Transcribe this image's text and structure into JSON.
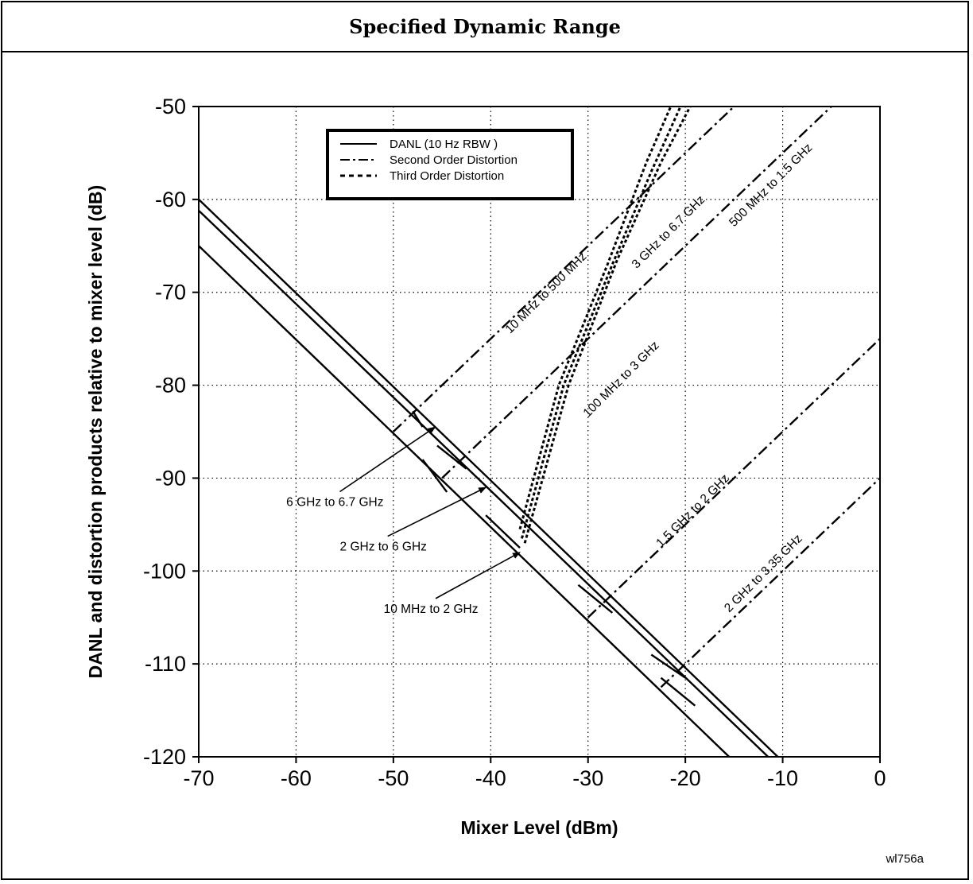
{
  "page": {
    "title": "Specified Dynamic Range",
    "figure_id": "wl756a"
  },
  "chart_data": {
    "type": "line",
    "xlabel": "Mixer Level (dBm)",
    "ylabel": "DANL and distortion products relative to mixer level (dB)",
    "xlim": [
      -70,
      0
    ],
    "ylim": [
      -120,
      -50
    ],
    "x_ticks": [
      "-70",
      "-60",
      "-50",
      "-40",
      "-30",
      "-20",
      "-10",
      "0"
    ],
    "y_ticks": [
      "-50",
      "-60",
      "-70",
      "-80",
      "-90",
      "-100",
      "-110",
      "-120"
    ],
    "grid": true,
    "legend_position": "top-left",
    "legend": [
      {
        "label": "DANL (10 Hz RBW )",
        "style": "solid"
      },
      {
        "label": "Second Order Distortion",
        "style": "dash-dot"
      },
      {
        "label": "Third Order Distortion",
        "style": "dotted"
      }
    ],
    "series": [
      {
        "kind": "danl",
        "label": "",
        "style": "solid",
        "points": [
          [
            -70,
            -60
          ],
          [
            -10.5,
            -120
          ]
        ]
      },
      {
        "kind": "danl",
        "label": "",
        "style": "solid",
        "points": [
          [
            -70,
            -61.2
          ],
          [
            -11.5,
            -120
          ]
        ]
      },
      {
        "kind": "danl",
        "label": "",
        "style": "solid",
        "points": [
          [
            -70,
            -65
          ],
          [
            -15.5,
            -120
          ]
        ]
      },
      {
        "kind": "second",
        "label": "10 MHz to 500 MHz",
        "style": "dash-dot",
        "points": [
          [
            -50,
            -85
          ],
          [
            -15,
            -50
          ]
        ]
      },
      {
        "kind": "second",
        "label": "500 MHz to 1.5 GHz",
        "style": "dash-dot",
        "points": [
          [
            -45,
            -90
          ],
          [
            -5,
            -50
          ]
        ]
      },
      {
        "kind": "second",
        "label": "1.5 GHz to 2 GHz",
        "style": "dash-dot",
        "points": [
          [
            -30,
            -105
          ],
          [
            0,
            -75
          ]
        ]
      },
      {
        "kind": "second",
        "label": "2 GHz to 3.35 GHz",
        "style": "dash-dot",
        "points": [
          [
            -22.5,
            -112.5
          ],
          [
            0,
            -90
          ]
        ]
      },
      {
        "kind": "third",
        "label": "3 GHz to 6.7 GHz",
        "style": "dotted",
        "points": [
          [
            -37,
            -95.5
          ],
          [
            -33,
            -80
          ],
          [
            -28,
            -67
          ],
          [
            -24,
            -56
          ],
          [
            -21.5,
            -50
          ]
        ]
      },
      {
        "kind": "third",
        "label": "100 MHz to 3 GHz",
        "style": "dotted",
        "points": [
          [
            -36.8,
            -96.5
          ],
          [
            -32.5,
            -80
          ],
          [
            -27.5,
            -67
          ],
          [
            -23.5,
            -57
          ],
          [
            -20.5,
            -50
          ]
        ]
      },
      {
        "kind": "third",
        "label": "",
        "style": "dotted",
        "points": [
          [
            -36.5,
            -97
          ],
          [
            -32,
            -80
          ],
          [
            -27,
            -66.5
          ],
          [
            -22.5,
            -56
          ],
          [
            -19.5,
            -50
          ]
        ]
      },
      {
        "kind": "marker",
        "label": "",
        "style": "solid",
        "points": [
          [
            -48,
            -82.8
          ],
          [
            -47,
            -84.5
          ]
        ]
      },
      {
        "kind": "marker",
        "label": "",
        "style": "solid",
        "points": [
          [
            -47,
            -88
          ],
          [
            -44.5,
            -91.5
          ]
        ]
      },
      {
        "kind": "marker",
        "label": "",
        "style": "solid",
        "points": [
          [
            -45.5,
            -86.5
          ],
          [
            -42.5,
            -89
          ]
        ]
      },
      {
        "kind": "marker",
        "label": "",
        "style": "solid",
        "points": [
          [
            -40.5,
            -94
          ],
          [
            -37,
            -97.5
          ]
        ]
      },
      {
        "kind": "marker",
        "label": "",
        "style": "solid",
        "points": [
          [
            -31,
            -101.5
          ],
          [
            -27.5,
            -104.5
          ]
        ]
      },
      {
        "kind": "marker",
        "label": "",
        "style": "solid",
        "points": [
          [
            -23.5,
            -109
          ],
          [
            -20,
            -111.5
          ]
        ]
      },
      {
        "kind": "marker",
        "label": "",
        "style": "solid",
        "points": [
          [
            -22.5,
            -111.5
          ],
          [
            -19,
            -114.5
          ]
        ]
      }
    ],
    "annotations": [
      {
        "text": "10 MHz to 500 MHz",
        "x": -38,
        "y": -74.5,
        "rotate": true,
        "anchor": "start"
      },
      {
        "text": "500 MHz to 1.5 GHz",
        "x": -15,
        "y": -63,
        "rotate": true,
        "anchor": "start"
      },
      {
        "text": "3 GHz to 6.7 GHz",
        "x": -25,
        "y": -67.5,
        "rotate": true,
        "anchor": "start"
      },
      {
        "text": "100 MHz to 3 GHz",
        "x": -30,
        "y": -83.5,
        "rotate": true,
        "anchor": "start"
      },
      {
        "text": "1.5 GHz to 2 GHz",
        "x": -22.5,
        "y": -97.5,
        "rotate": true,
        "anchor": "start"
      },
      {
        "text": "2 GHz to 3.35 GHz",
        "x": -15.5,
        "y": -104.5,
        "rotate": true,
        "anchor": "start"
      },
      {
        "text": "6 GHz to 6.7 GHz",
        "x": -61,
        "y": -93,
        "rotate": false,
        "anchor": "start",
        "arrow_to": [
          -45.7,
          -84.5
        ]
      },
      {
        "text": "2 GHz to 6 GHz",
        "x": -55.5,
        "y": -97.8,
        "rotate": false,
        "anchor": "start",
        "arrow_to": [
          -40.5,
          -91
        ]
      },
      {
        "text": "10 MHz to 2 GHz",
        "x": -51,
        "y": -104.5,
        "rotate": false,
        "anchor": "start",
        "arrow_to": [
          -37,
          -98
        ]
      }
    ]
  }
}
